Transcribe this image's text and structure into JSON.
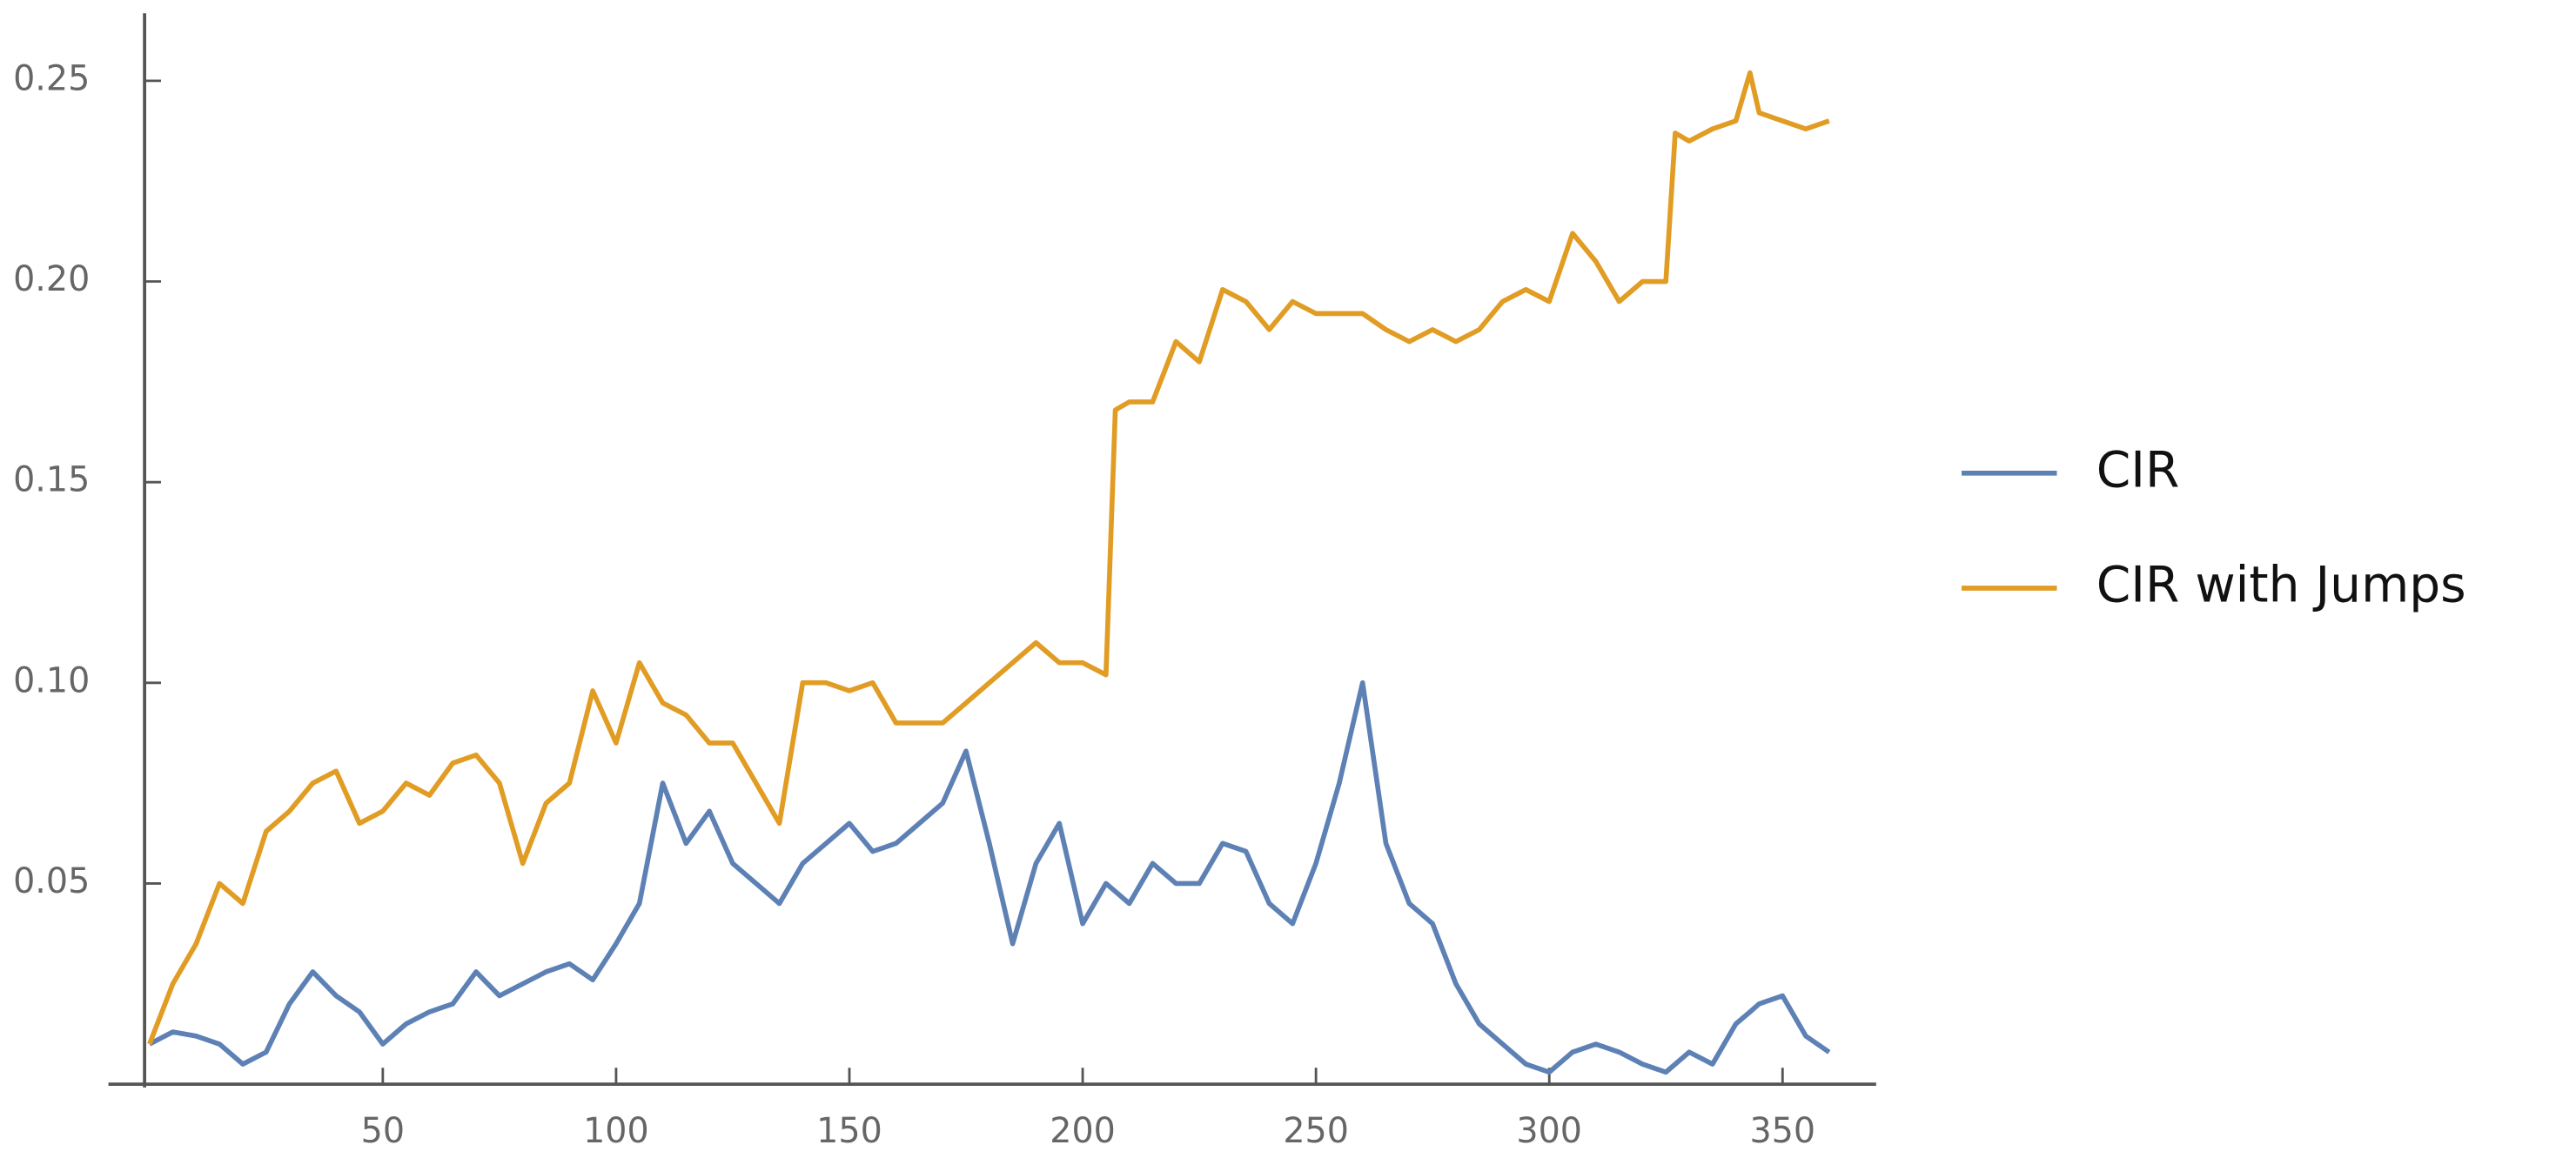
{
  "chart_data": {
    "type": "line",
    "x": [
      0,
      5,
      10,
      15,
      20,
      25,
      30,
      35,
      40,
      45,
      50,
      55,
      60,
      65,
      70,
      75,
      80,
      85,
      90,
      95,
      100,
      105,
      110,
      115,
      120,
      125,
      130,
      135,
      140,
      145,
      150,
      155,
      160,
      165,
      170,
      175,
      180,
      185,
      190,
      195,
      200,
      205,
      207,
      210,
      215,
      220,
      225,
      230,
      235,
      240,
      245,
      250,
      255,
      260,
      265,
      270,
      275,
      280,
      285,
      290,
      295,
      300,
      305,
      310,
      315,
      320,
      325,
      327,
      330,
      335,
      340,
      343,
      345,
      350,
      355,
      360
    ],
    "series": [
      {
        "name": "CIR",
        "color": "#5e81b5",
        "values": [
          0.01,
          0.013,
          0.012,
          0.01,
          0.005,
          0.008,
          0.02,
          0.028,
          0.022,
          0.018,
          0.01,
          0.015,
          0.018,
          0.02,
          0.028,
          0.022,
          0.025,
          0.028,
          0.03,
          0.026,
          0.035,
          0.045,
          0.075,
          0.06,
          0.068,
          0.055,
          0.05,
          0.045,
          0.055,
          0.06,
          0.065,
          0.058,
          0.06,
          0.065,
          0.07,
          0.083,
          0.06,
          0.035,
          0.055,
          0.065,
          0.04,
          0.05,
          0.048,
          0.045,
          0.055,
          0.05,
          0.05,
          0.06,
          0.058,
          0.045,
          0.04,
          0.055,
          0.075,
          0.1,
          0.06,
          0.045,
          0.04,
          0.025,
          0.015,
          0.01,
          0.005,
          0.003,
          0.008,
          0.01,
          0.008,
          0.005,
          0.003,
          0.005,
          0.008,
          0.005,
          0.015,
          0.018,
          0.02,
          0.022,
          0.012,
          0.008
        ]
      },
      {
        "name": "CIR with Jumps",
        "color": "#e19c24",
        "values": [
          0.01,
          0.025,
          0.035,
          0.05,
          0.045,
          0.063,
          0.068,
          0.075,
          0.078,
          0.065,
          0.068,
          0.075,
          0.072,
          0.08,
          0.082,
          0.075,
          0.055,
          0.07,
          0.075,
          0.098,
          0.085,
          0.105,
          0.095,
          0.092,
          0.085,
          0.085,
          0.075,
          0.065,
          0.1,
          0.1,
          0.098,
          0.1,
          0.09,
          0.09,
          0.09,
          0.095,
          0.1,
          0.105,
          0.11,
          0.105,
          0.105,
          0.102,
          0.168,
          0.17,
          0.17,
          0.185,
          0.18,
          0.198,
          0.195,
          0.188,
          0.195,
          0.192,
          0.192,
          0.192,
          0.188,
          0.185,
          0.188,
          0.185,
          0.188,
          0.195,
          0.198,
          0.195,
          0.212,
          0.205,
          0.195,
          0.2,
          0.2,
          0.237,
          0.235,
          0.238,
          0.24,
          0.252,
          0.242,
          0.24,
          0.238,
          0.24
        ]
      }
    ],
    "xlim": [
      0,
      369
    ],
    "ylim": [
      0,
      0.266
    ],
    "xticks": [
      50,
      100,
      150,
      200,
      250,
      300,
      350
    ],
    "yticks": [
      0.05,
      {
        "value": 0.1,
        "label": "0.10"
      },
      0.15,
      {
        "value": 0.2,
        "label": "0.20"
      },
      0.25
    ],
    "legend": "right"
  }
}
